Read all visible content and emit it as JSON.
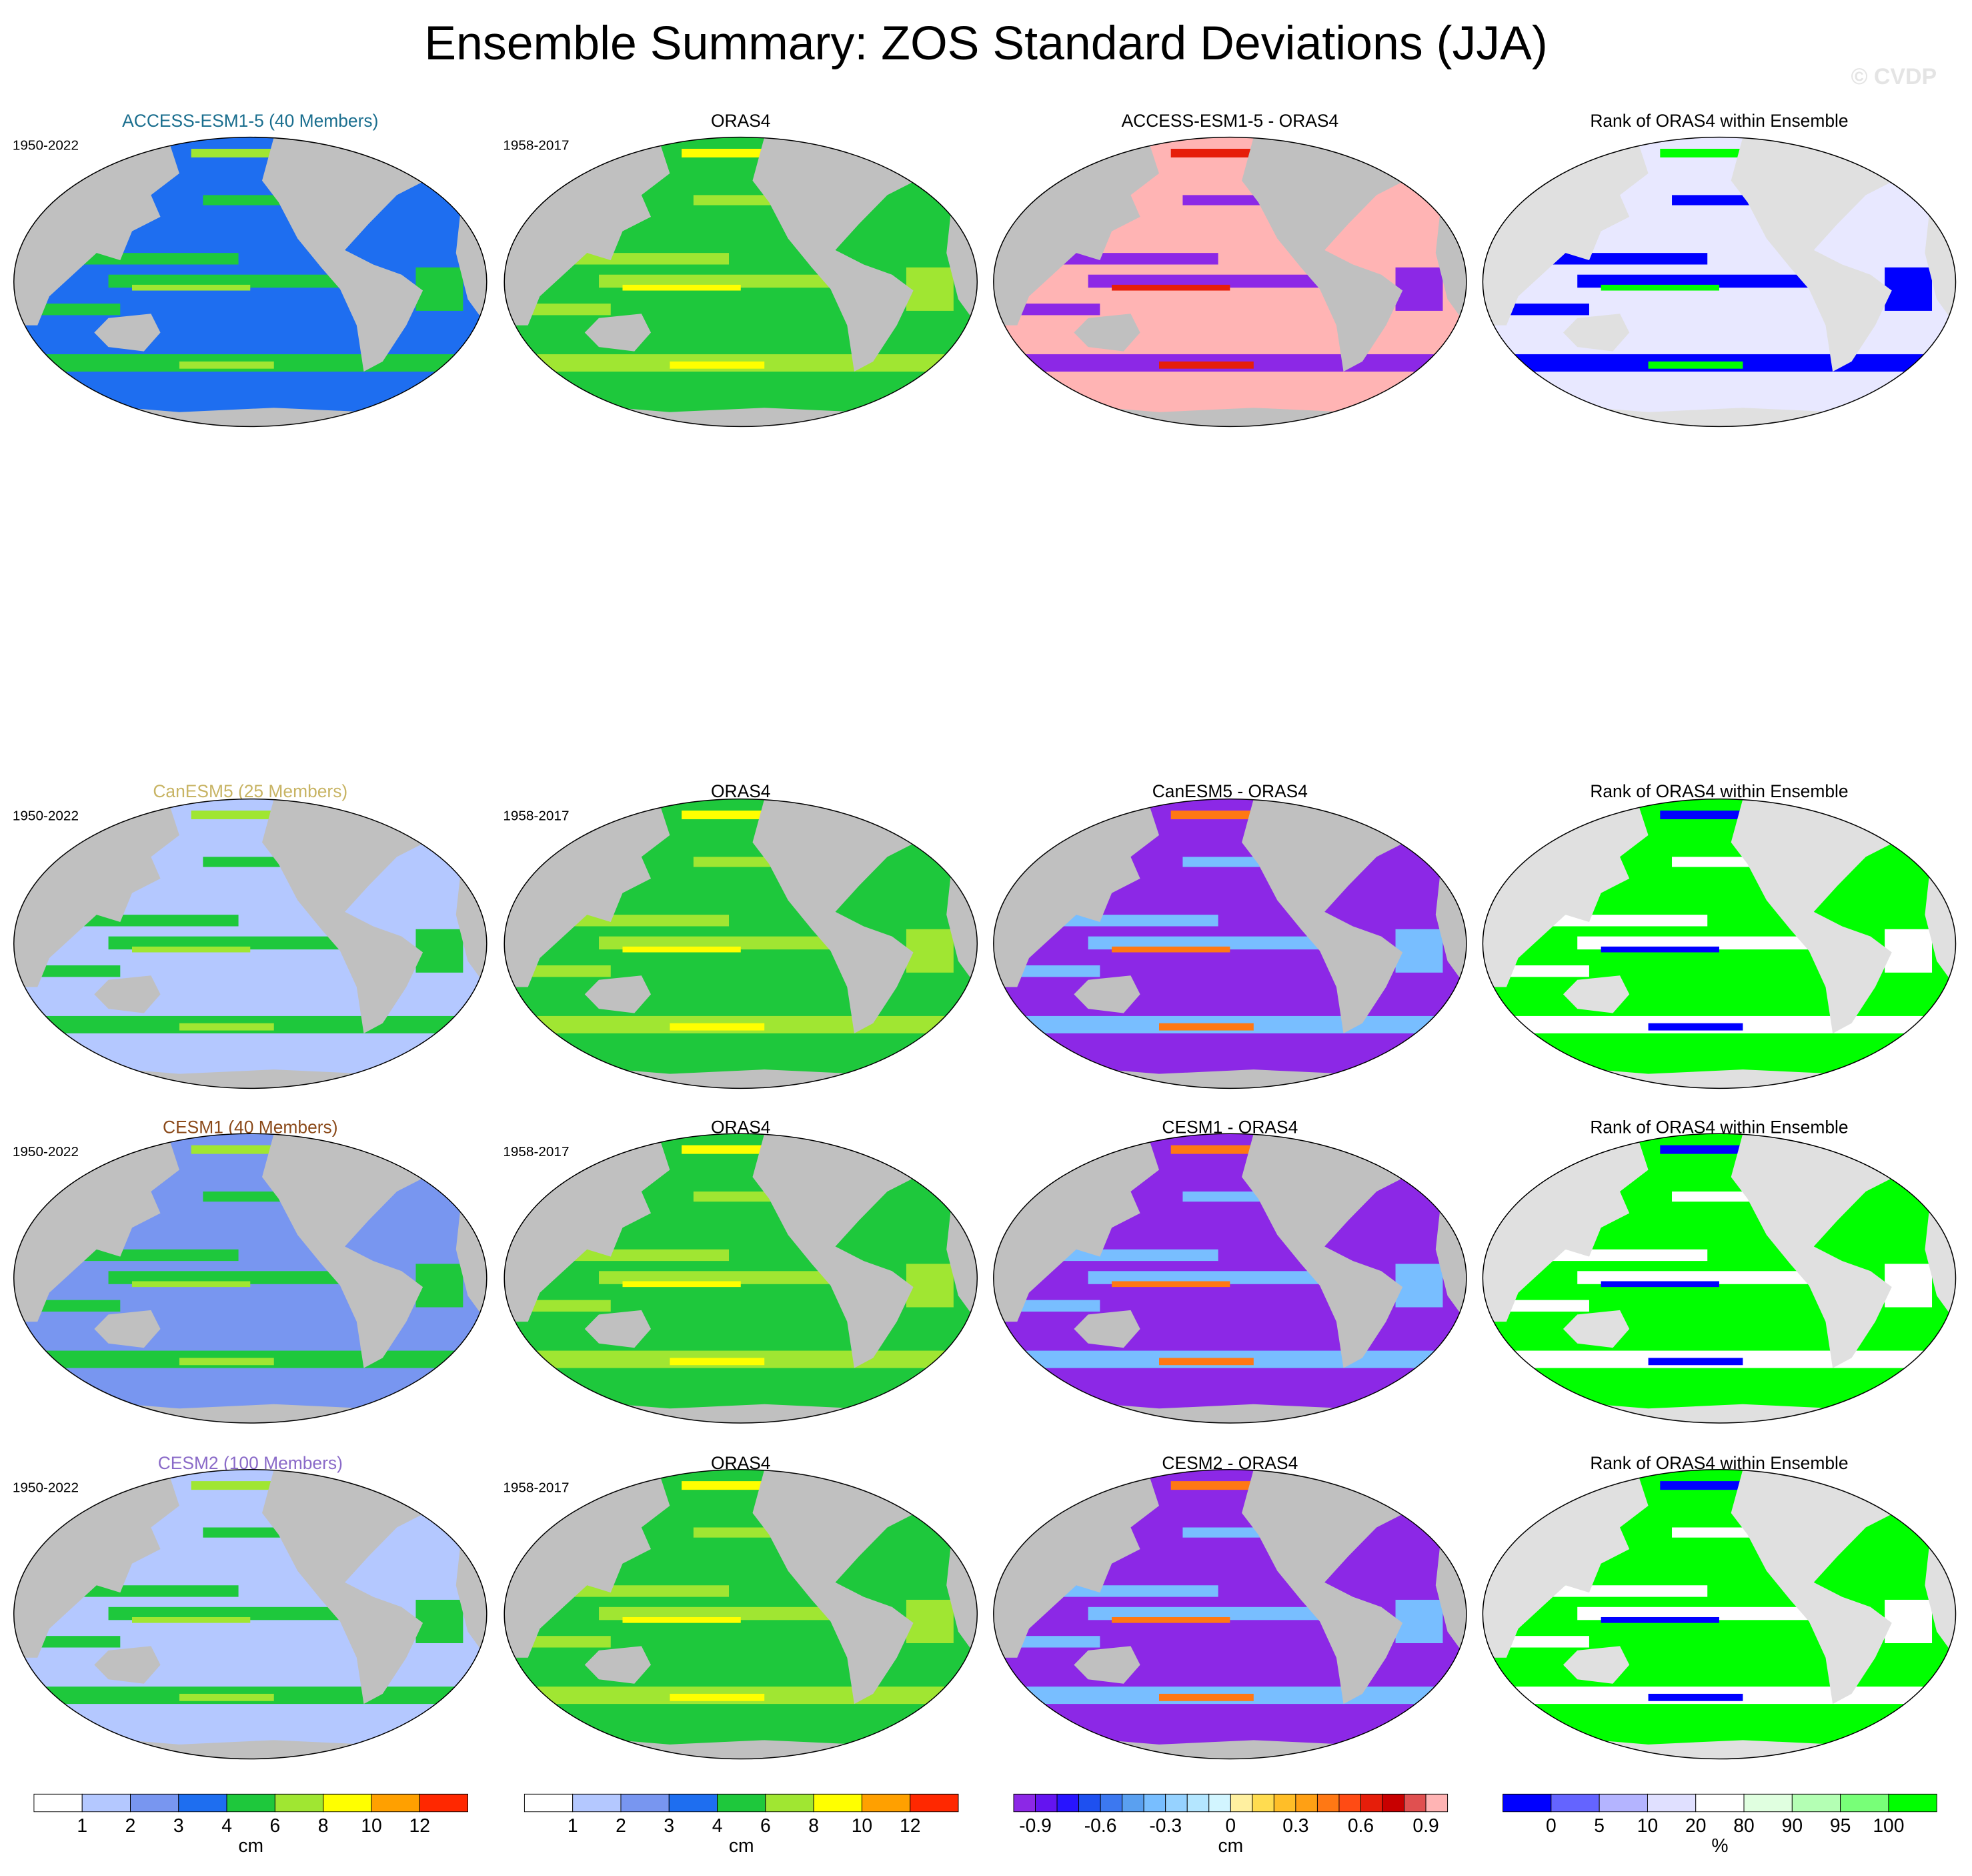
{
  "title": "Ensemble Summary: ZOS Standard Deviations (JJA)",
  "watermark": "© CVDP",
  "rows": [
    {
      "panels": [
        {
          "title": "ACCESS-ESM1-5 (40 Members)",
          "title_color": "#1a6e8e",
          "period": "1950-2022"
        },
        {
          "title": "ORAS4",
          "period": "1958-2017"
        },
        {
          "title": "ACCESS-ESM1-5 - ORAS4"
        },
        {
          "title": "Rank of ORAS4 within Ensemble"
        }
      ]
    },
    {
      "panels": [
        {
          "title": "CanESM5 (25 Members)",
          "title_color": "#c8b464",
          "period": "1950-2022"
        },
        {
          "title": "ORAS4",
          "period": "1958-2017"
        },
        {
          "title": "CanESM5 - ORAS4"
        },
        {
          "title": "Rank of ORAS4 within Ensemble"
        }
      ]
    },
    {
      "panels": [
        {
          "title": "CESM1 (40 Members)",
          "title_color": "#8b4a1a",
          "period": "1950-2022"
        },
        {
          "title": "ORAS4",
          "period": "1958-2017"
        },
        {
          "title": "CESM1 - ORAS4"
        },
        {
          "title": "Rank of ORAS4 within Ensemble"
        }
      ]
    },
    {
      "panels": [
        {
          "title": "CESM2 (100 Members)",
          "title_color": "#8a6ac8",
          "period": "1950-2022"
        },
        {
          "title": "ORAS4",
          "period": "1958-2017"
        },
        {
          "title": "CESM2 - ORAS4"
        },
        {
          "title": "Rank of ORAS4 within Ensemble"
        }
      ]
    }
  ],
  "colorbars": [
    {
      "ticks": [
        1,
        2,
        3,
        4,
        6,
        8,
        10,
        12
      ],
      "unit": "cm",
      "colors": [
        "#ffffff",
        "#b4c8ff",
        "#7896f0",
        "#1e6ef0",
        "#1ec83c",
        "#a0e632",
        "#ffff00",
        "#ffa000",
        "#ff2800"
      ]
    },
    {
      "ticks": [
        1,
        2,
        3,
        4,
        6,
        8,
        10,
        12
      ],
      "unit": "cm",
      "colors": [
        "#ffffff",
        "#b4c8ff",
        "#7896f0",
        "#1e6ef0",
        "#1ec83c",
        "#a0e632",
        "#ffff00",
        "#ffa000",
        "#ff2800"
      ]
    },
    {
      "ticks": [
        -0.9,
        -0.6,
        -0.3,
        0,
        0.3,
        0.6,
        0.9
      ],
      "unit": "cm",
      "colors": [
        "#8c28e6",
        "#6414f0",
        "#2814ff",
        "#1e50f0",
        "#3c78f0",
        "#5aa0f0",
        "#78beff",
        "#96d2ff",
        "#b4e6ff",
        "#d2f5ff",
        "#fff0a0",
        "#ffdc50",
        "#ffbe28",
        "#ffa014",
        "#ff7814",
        "#ff4b14",
        "#e61e0a",
        "#c80000",
        "#e05050",
        "#ffb4b4"
      ]
    },
    {
      "ticks": [
        0,
        5,
        10,
        20,
        80,
        90,
        95,
        100
      ],
      "unit": "%",
      "colors": [
        "#0000ff",
        "#6464ff",
        "#b4b4ff",
        "#e0e0ff",
        "#ffffff",
        "#e0ffe0",
        "#b4ffb4",
        "#78ff78",
        "#00ff00"
      ]
    }
  ]
}
